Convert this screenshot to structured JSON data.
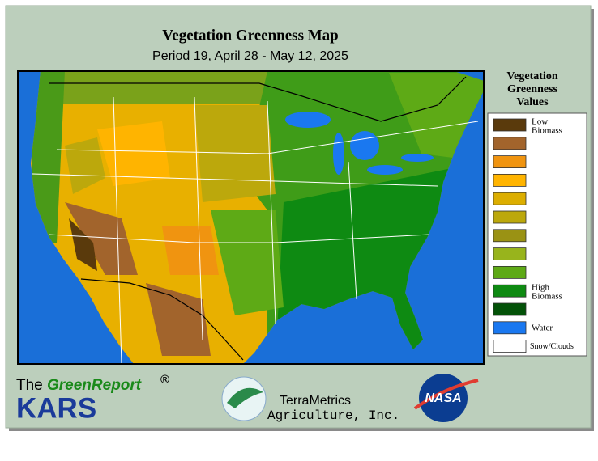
{
  "header": {
    "title": "Vegetation Greenness Map",
    "subtitle": "Period 19, April 28 - May 12, 2025"
  },
  "legend": {
    "title_lines": [
      "Vegetation",
      "Greenness",
      "Values"
    ],
    "items": [
      {
        "color": "#5a3a0c",
        "label_lines": [
          "Low",
          "Biomass"
        ]
      },
      {
        "color": "#a2642c"
      },
      {
        "color": "#f09410"
      },
      {
        "color": "#ffb400"
      },
      {
        "color": "#dcae00"
      },
      {
        "color": "#bca80c"
      },
      {
        "color": "#9a9214"
      },
      {
        "color": "#98b41c"
      },
      {
        "color": "#5eaa16"
      },
      {
        "color": "#0e8a12",
        "label_lines": [
          "High",
          "Biomass"
        ]
      },
      {
        "color": "#035208"
      },
      {
        "color": "#1a78f0",
        "label_lines": [
          "Water"
        ]
      },
      {
        "color": "#ffffff",
        "label_lines": [
          "Snow/Clouds"
        ]
      }
    ]
  },
  "footer": {
    "the": "The",
    "green_report": "GreenReport",
    "registered": "®",
    "kars": "KARS",
    "terrametrics": "TerraMetrics",
    "agriculture": "Agriculture, Inc.",
    "nasa": "NASA"
  }
}
